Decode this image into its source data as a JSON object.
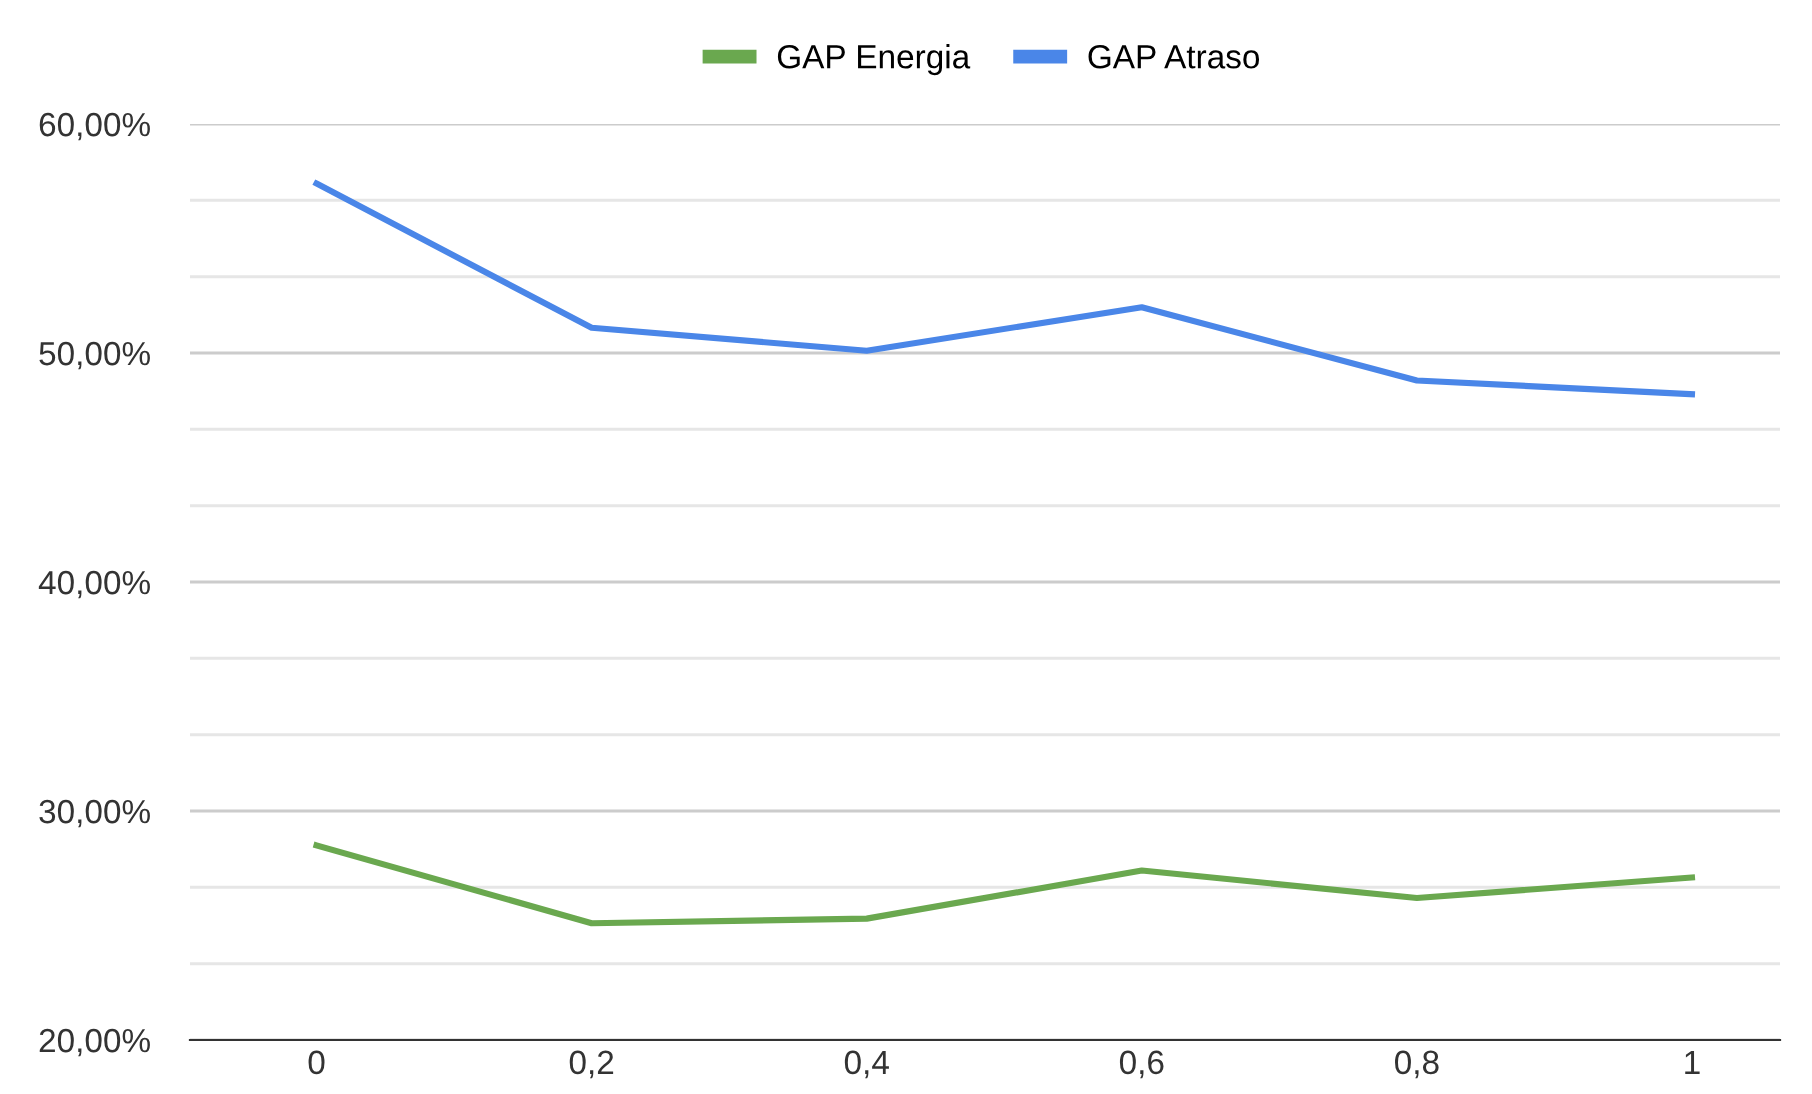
{
  "chart_data": {
    "type": "line",
    "categories": [
      "0",
      "0,2",
      "0,4",
      "0,6",
      "0,8",
      "1"
    ],
    "series": [
      {
        "name": "GAP Energia",
        "color": "#6aa84f",
        "values": [
          28.5,
          25.1,
          25.3,
          27.4,
          26.2,
          27.1
        ]
      },
      {
        "name": "GAP Atraso",
        "color": "#4a86e8",
        "values": [
          57.4,
          51.1,
          50.1,
          52.0,
          48.8,
          48.2
        ]
      }
    ],
    "ylim": [
      20,
      60
    ],
    "yticks": [
      {
        "value": 20,
        "label": "20,00%"
      },
      {
        "value": 23.33,
        "label": null
      },
      {
        "value": 26.67,
        "label": null
      },
      {
        "value": 30,
        "label": "30,00%"
      },
      {
        "value": 33.33,
        "label": null
      },
      {
        "value": 36.67,
        "label": null
      },
      {
        "value": 40,
        "label": "40,00%"
      },
      {
        "value": 43.33,
        "label": null
      },
      {
        "value": 46.67,
        "label": null
      },
      {
        "value": 50,
        "label": "50,00%"
      },
      {
        "value": 53.33,
        "label": null
      },
      {
        "value": 56.67,
        "label": null
      },
      {
        "value": 60,
        "label": "60,00%"
      }
    ],
    "grid": "y",
    "legend": "top",
    "marker": "none",
    "line_style": "solid"
  }
}
